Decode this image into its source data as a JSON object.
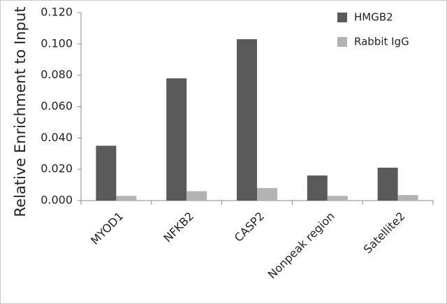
{
  "chart_data": {
    "type": "bar",
    "y_label": "Relative Enrichment to Input",
    "categories": [
      "MYOD1",
      "NFKB2",
      "CASP2",
      "Nonpeak region",
      "Satellite2"
    ],
    "series": [
      {
        "name": "HMGB2",
        "color": "#5a5a5a",
        "values": [
          0.035,
          0.078,
          0.103,
          0.016,
          0.021
        ]
      },
      {
        "name": "Rabbit IgG",
        "color": "#b3b3b3",
        "values": [
          0.003,
          0.006,
          0.008,
          0.003,
          0.0035
        ]
      }
    ],
    "ylim": [
      0,
      0.12
    ],
    "yticks": [
      {
        "value": 0,
        "label": "0.000"
      },
      {
        "value": 0.02,
        "label": "0.020"
      },
      {
        "value": 0.04,
        "label": "0.040"
      },
      {
        "value": 0.06,
        "label": "0.060"
      },
      {
        "value": 0.08,
        "label": "0.080"
      },
      {
        "value": 0.1,
        "label": "0.100"
      },
      {
        "value": 0.12,
        "label": "0.120"
      }
    ],
    "grid": false,
    "legend": "top-right"
  }
}
